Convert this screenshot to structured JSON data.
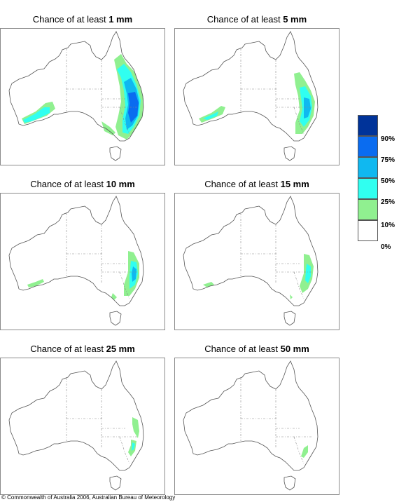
{
  "title_prefix": "Chance of at least",
  "panels": [
    {
      "threshold": "1 mm",
      "level": 6
    },
    {
      "threshold": "5 mm",
      "level": 5
    },
    {
      "threshold": "10 mm",
      "level": 4
    },
    {
      "threshold": "15 mm",
      "level": 3
    },
    {
      "threshold": "25 mm",
      "level": 2
    },
    {
      "threshold": "50 mm",
      "level": 1
    }
  ],
  "legend": {
    "labels": [
      "90%",
      "75%",
      "50%",
      "25%",
      "10%",
      "0%"
    ],
    "colors": [
      "#003399",
      "#0a6cf0",
      "#10b8f0",
      "#30fff0",
      "#90f090",
      "#ffffff"
    ]
  },
  "footer": "© Commonwealth of Australia 2006, Australian Bureau of Meteorology"
}
